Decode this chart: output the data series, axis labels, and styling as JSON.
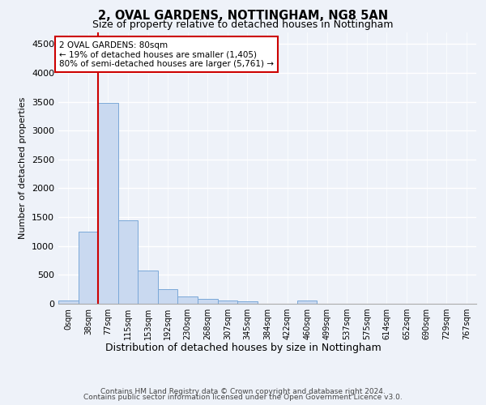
{
  "title1": "2, OVAL GARDENS, NOTTINGHAM, NG8 5AN",
  "title2": "Size of property relative to detached houses in Nottingham",
  "xlabel": "Distribution of detached houses by size in Nottingham",
  "ylabel": "Number of detached properties",
  "bin_labels": [
    "0sqm",
    "38sqm",
    "77sqm",
    "115sqm",
    "153sqm",
    "192sqm",
    "230sqm",
    "268sqm",
    "307sqm",
    "345sqm",
    "384sqm",
    "422sqm",
    "460sqm",
    "499sqm",
    "537sqm",
    "575sqm",
    "614sqm",
    "652sqm",
    "690sqm",
    "729sqm",
    "767sqm"
  ],
  "bar_heights": [
    50,
    1250,
    3480,
    1450,
    580,
    250,
    130,
    80,
    50,
    40,
    5,
    5,
    60,
    5,
    5,
    5,
    5,
    5,
    5,
    5,
    0
  ],
  "bar_color": "#c9d9f0",
  "bar_edgecolor": "#7aa8d8",
  "red_line_bin": 2,
  "ylim": [
    0,
    4700
  ],
  "yticks": [
    0,
    500,
    1000,
    1500,
    2000,
    2500,
    3000,
    3500,
    4000,
    4500
  ],
  "annotation_title": "2 OVAL GARDENS: 80sqm",
  "annotation_line1": "← 19% of detached houses are smaller (1,405)",
  "annotation_line2": "80% of semi-detached houses are larger (5,761) →",
  "footer1": "Contains HM Land Registry data © Crown copyright and database right 2024.",
  "footer2": "Contains public sector information licensed under the Open Government Licence v3.0.",
  "bg_color": "#eef2f9",
  "plot_bg_color": "#eef2f9",
  "grid_color": "#ffffff",
  "ann_bg": "#ffffff",
  "ann_edgecolor": "#cc0000",
  "red_line_color": "#cc0000"
}
